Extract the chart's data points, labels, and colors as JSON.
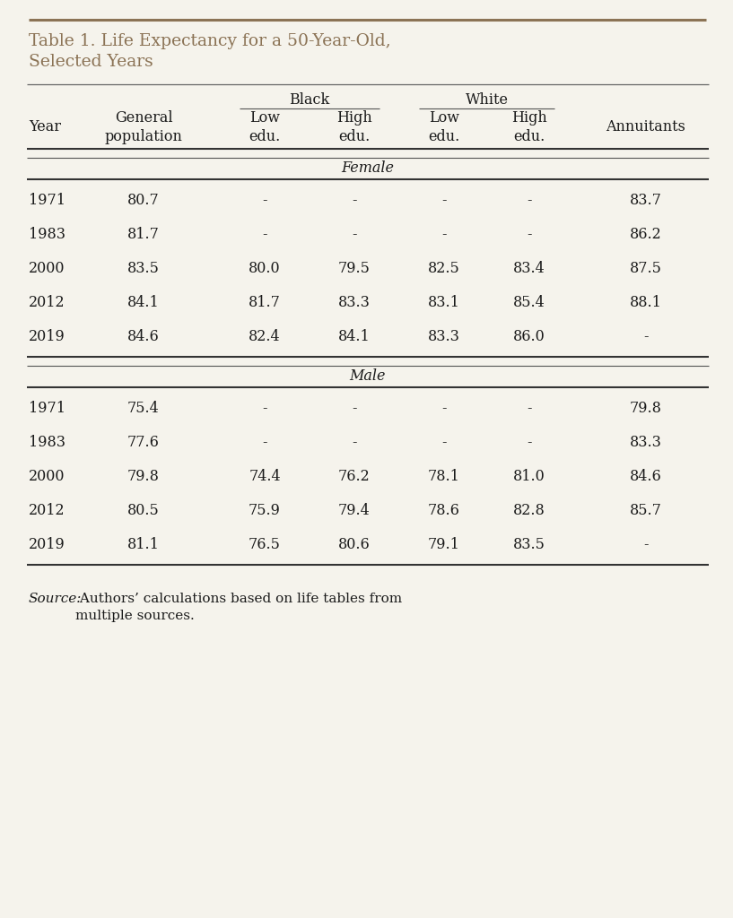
{
  "title_line1": "Table 1. Life Expectancy for a 50-Year-Old,",
  "title_line2": "Selected Years",
  "title_color": "#8B7355",
  "bg_color": "#F5F3EC",
  "border_color": "#8B7355",
  "text_color": "#1a1a1a",
  "source_italic": "Source:",
  "source_normal": " Authors’ calculations based on life tables from\nmultiple sources.",
  "female_data": [
    [
      "1971",
      "80.7",
      "-",
      "-",
      "-",
      "-",
      "83.7"
    ],
    [
      "1983",
      "81.7",
      "-",
      "-",
      "-",
      "-",
      "86.2"
    ],
    [
      "2000",
      "83.5",
      "80.0",
      "79.5",
      "82.5",
      "83.4",
      "87.5"
    ],
    [
      "2012",
      "84.1",
      "81.7",
      "83.3",
      "83.1",
      "85.4",
      "88.1"
    ],
    [
      "2019",
      "84.6",
      "82.4",
      "84.1",
      "83.3",
      "86.0",
      "-"
    ]
  ],
  "male_data": [
    [
      "1971",
      "75.4",
      "-",
      "-",
      "-",
      "-",
      "79.8"
    ],
    [
      "1983",
      "77.6",
      "-",
      "-",
      "-",
      "-",
      "83.3"
    ],
    [
      "2000",
      "79.8",
      "74.4",
      "76.2",
      "78.1",
      "81.0",
      "84.6"
    ],
    [
      "2012",
      "80.5",
      "75.9",
      "79.4",
      "78.6",
      "82.8",
      "85.7"
    ],
    [
      "2019",
      "81.1",
      "76.5",
      "80.6",
      "79.1",
      "83.5",
      "-"
    ]
  ]
}
